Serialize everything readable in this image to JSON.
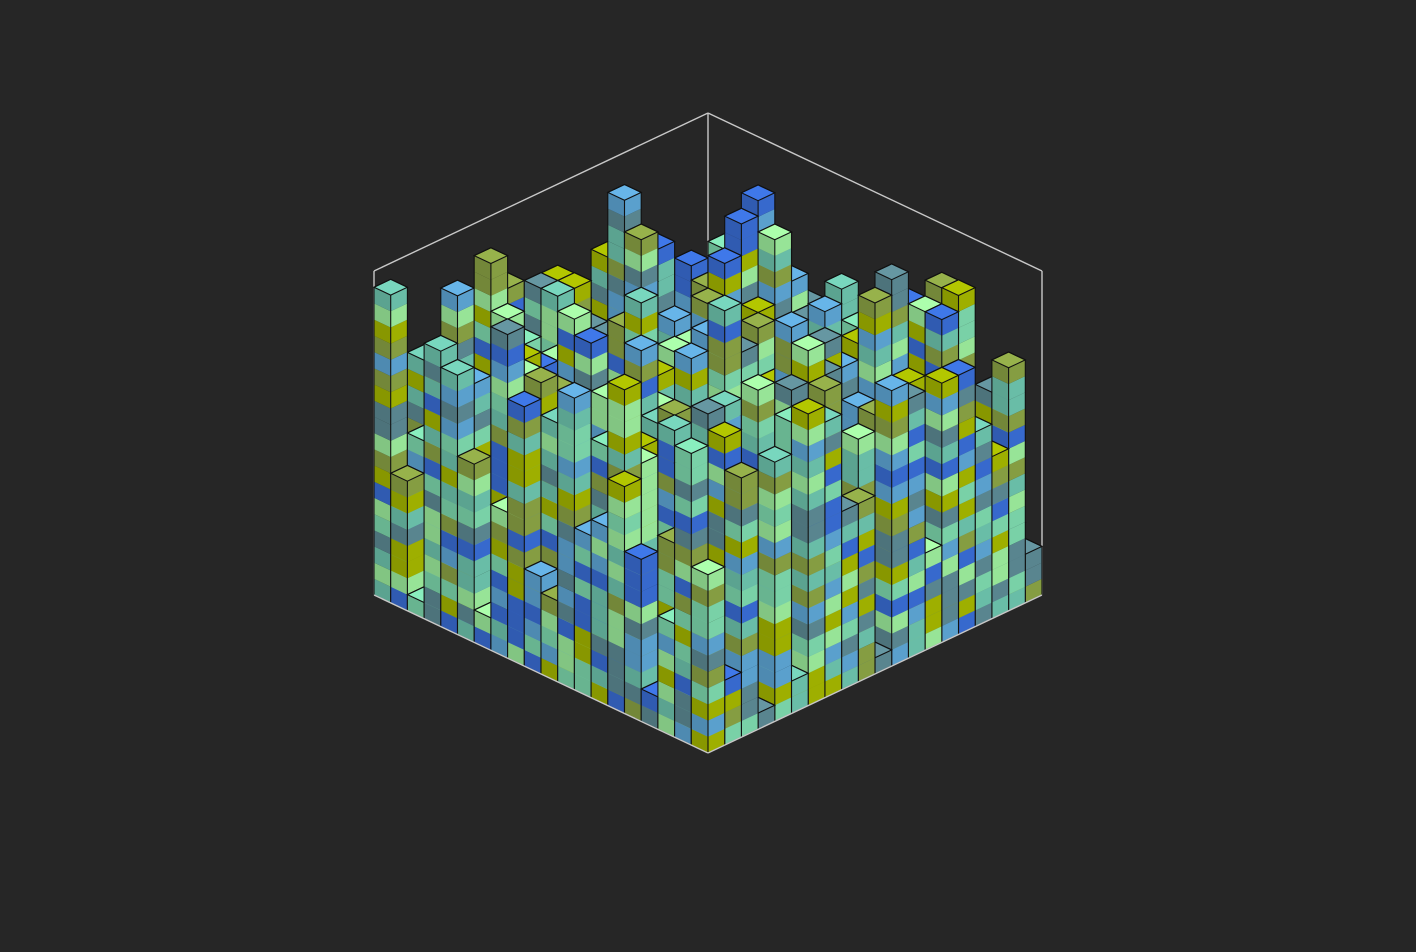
{
  "colors": {
    "background": "#262626",
    "frame": "#c8c8c8",
    "edge": "#111111",
    "palette": [
      "#3a6fd8",
      "#5fa8d8",
      "#6fc7b0",
      "#7fdcb0",
      "#9ff09f",
      "#8ca545",
      "#a6b800",
      "#5e8c96"
    ]
  },
  "chart_data": {
    "type": "heatmap",
    "subtype": "3d-voxel-columns",
    "title": "",
    "xlabel": "",
    "ylabel": "",
    "zlabel": "",
    "grid": false,
    "legend": "none",
    "grid_size": [
      20,
      20
    ],
    "zlim": [
      0,
      20
    ],
    "heights": [
      [
        6,
        9,
        9,
        1,
        8,
        10,
        15,
        2,
        13,
        15,
        5,
        4,
        16,
        2,
        9,
        17,
        3,
        14,
        1,
        19
      ],
      [
        9,
        9,
        13,
        7,
        15,
        9,
        19,
        3,
        10,
        15,
        3,
        16,
        4,
        1,
        19,
        4,
        9,
        3,
        10,
        8
      ],
      [
        12,
        3,
        1,
        8,
        10,
        1,
        14,
        1,
        10,
        13,
        16,
        16,
        3,
        14,
        4,
        10,
        12,
        4,
        1,
        1
      ],
      [
        15,
        10,
        15,
        6,
        10,
        12,
        10,
        18,
        8,
        13,
        5,
        11,
        13,
        13,
        4,
        4,
        3,
        12,
        7,
        17
      ],
      [
        1,
        18,
        2,
        11,
        5,
        8,
        2,
        9,
        19,
        2,
        10,
        13,
        16,
        12,
        9,
        15,
        18,
        2,
        15,
        16
      ],
      [
        9,
        8,
        5,
        3,
        8,
        13,
        7,
        1,
        3,
        9,
        15,
        1,
        10,
        2,
        1,
        13,
        4,
        2,
        3,
        11
      ],
      [
        12,
        14,
        17,
        2,
        19,
        3,
        12,
        13,
        8,
        12,
        12,
        13,
        12,
        10,
        18,
        3,
        1,
        16,
        19,
        2
      ],
      [
        10,
        2,
        11,
        10,
        10,
        8,
        8,
        17,
        8,
        14,
        6,
        5,
        17,
        3,
        17,
        10,
        15,
        11,
        13,
        9
      ],
      [
        14,
        10,
        11,
        11,
        19,
        15,
        4,
        19,
        17,
        14,
        15,
        6,
        19,
        9,
        14,
        14,
        5,
        12,
        17,
        16
      ],
      [
        11,
        12,
        3,
        14,
        9,
        5,
        15,
        14,
        5,
        16,
        10,
        8,
        15,
        15,
        9,
        10,
        6,
        14,
        15,
        6
      ],
      [
        11,
        3,
        9,
        10,
        5,
        7,
        10,
        8,
        7,
        14,
        13,
        4,
        6,
        14,
        18,
        16,
        16,
        8,
        6,
        5
      ],
      [
        12,
        3,
        3,
        8,
        3,
        10,
        5,
        13,
        4,
        3,
        19,
        2,
        17,
        13,
        14,
        13,
        8,
        11,
        2,
        18
      ],
      [
        15,
        11,
        3,
        4,
        9,
        17,
        8,
        17,
        5,
        11,
        11,
        13,
        5,
        18,
        15,
        4,
        13,
        7,
        15,
        10
      ],
      [
        1,
        16,
        18,
        11,
        16,
        13,
        3,
        12,
        6,
        1,
        13,
        4,
        9,
        12,
        11,
        1,
        6,
        3,
        19,
        11
      ],
      [
        17,
        3,
        8,
        5,
        14,
        16,
        15,
        17,
        11,
        14,
        14,
        2,
        5,
        6,
        9,
        7,
        16,
        2,
        7,
        14
      ],
      [
        4,
        6,
        17,
        3,
        1,
        19,
        8,
        5,
        16,
        18,
        2,
        3,
        11,
        7,
        17,
        6,
        14,
        10,
        6,
        10
      ],
      [
        11,
        18,
        17,
        11,
        5,
        6,
        12,
        14,
        10,
        16,
        5,
        7,
        1,
        18,
        3,
        4,
        18,
        13,
        11,
        2
      ],
      [
        3,
        3,
        12,
        8,
        14,
        15,
        5,
        8,
        13,
        9,
        1,
        11,
        18,
        5,
        11,
        4,
        14,
        14,
        7,
        7
      ],
      [
        4,
        13,
        2,
        8,
        13,
        8,
        7,
        2,
        15,
        14,
        5,
        9,
        16,
        17,
        8,
        14,
        3,
        18,
        7,
        18
      ],
      [
        3,
        15,
        10,
        12,
        16,
        16,
        6,
        16,
        17,
        1,
        11,
        11,
        17,
        18,
        2,
        16,
        1,
        16,
        4,
        11
      ]
    ]
  }
}
